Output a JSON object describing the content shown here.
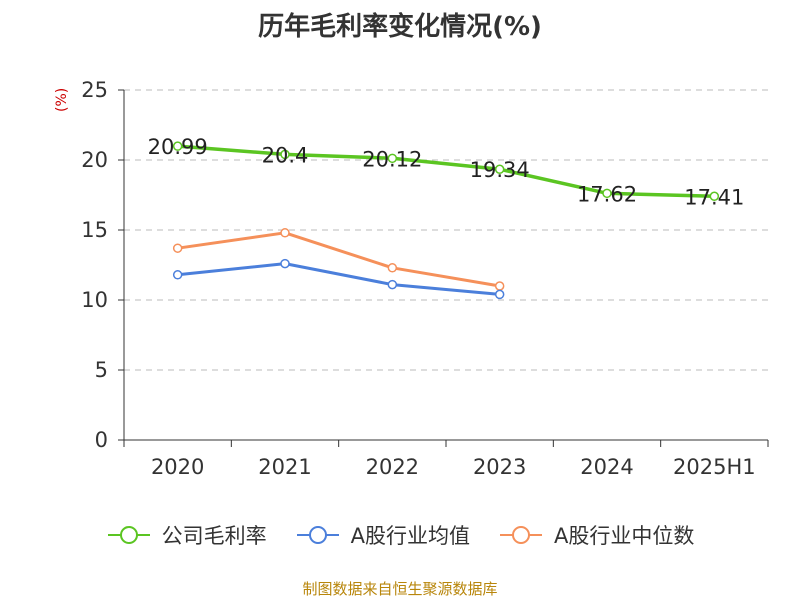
{
  "title": "历年毛利率变化情况(%)",
  "source": "制图数据来自恒生聚源数据库",
  "colors": {
    "gross": "#5bc522",
    "avg": "#4b7fdb",
    "median": "#f5905a",
    "axis": "#333333",
    "grid": "#bbbbbb"
  },
  "chart_data": {
    "type": "line",
    "categories": [
      "2020",
      "2021",
      "2022",
      "2023",
      "2024",
      "2025H1"
    ],
    "ylabel": "(%)",
    "ylim": [
      0,
      25
    ],
    "yticks": [
      0,
      5,
      10,
      15,
      20,
      25
    ],
    "grid": true,
    "legend_position": "bottom",
    "series": [
      {
        "name": "公司毛利率",
        "color": "#5bc522",
        "values": [
          20.99,
          20.4,
          20.12,
          19.34,
          17.62,
          17.41
        ],
        "labels": [
          "20.99",
          "20.4",
          "20.12",
          "19.34",
          "17.62",
          "17.41"
        ]
      },
      {
        "name": "A股行业均值",
        "color": "#4b7fdb",
        "values": [
          11.8,
          12.6,
          11.1,
          10.4,
          null,
          null
        ]
      },
      {
        "name": "A股行业中位数",
        "color": "#f5905a",
        "values": [
          13.7,
          14.8,
          12.3,
          11.0,
          null,
          null
        ]
      }
    ]
  }
}
